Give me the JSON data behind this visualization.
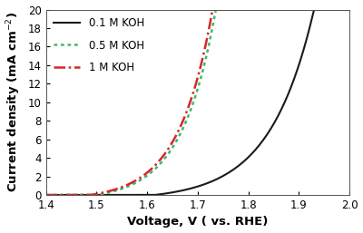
{
  "title": "",
  "xlabel": "Voltage, V ( vs. RHE)",
  "ylabel": "Current density (mA cm$^{-2}$)",
  "xlim": [
    1.4,
    2.0
  ],
  "ylim": [
    0,
    20
  ],
  "xticks": [
    1.4,
    1.5,
    1.6,
    1.7,
    1.8,
    1.9,
    2.0
  ],
  "yticks": [
    0,
    2,
    4,
    6,
    8,
    10,
    12,
    14,
    16,
    18,
    20
  ],
  "curves": [
    {
      "label": "0.1 M KOH",
      "color": "#1a1a1a",
      "linestyle": "solid",
      "linewidth": 1.5,
      "onset": 1.615,
      "scale": 0.55,
      "exp_factor": 11.5
    },
    {
      "label": "0.5 M KOH",
      "color": "#3dba6e",
      "linestyle": "dotted",
      "linewidth": 1.8,
      "onset": 1.5,
      "scale": 0.6,
      "exp_factor": 15.0
    },
    {
      "label": "1 M KOH",
      "color": "#d62728",
      "linestyle": "dashdot",
      "linewidth": 1.8,
      "onset": 1.488,
      "scale": 0.55,
      "exp_factor": 15.0
    }
  ],
  "legend_loc": "upper left",
  "legend_fontsize": 8.5,
  "tick_fontsize": 8.5,
  "label_fontsize": 9.5,
  "background_color": "#ffffff",
  "legend_labelspacing": 1.0,
  "legend_handlelength": 2.5,
  "legend_frameon": false
}
